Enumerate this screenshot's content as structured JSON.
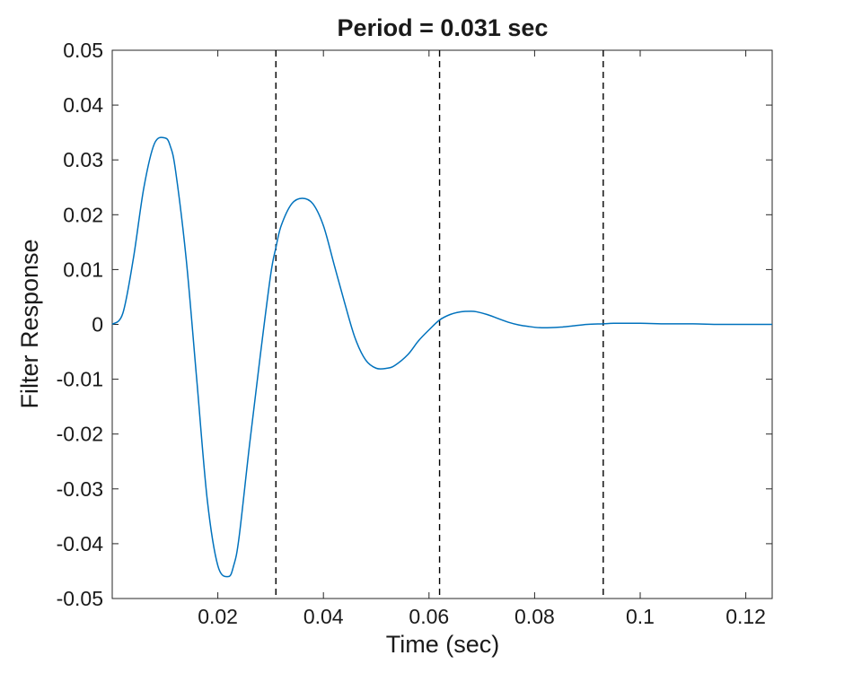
{
  "chart_data": {
    "type": "line",
    "title": "Period = 0.031 sec",
    "xlabel": "Time (sec)",
    "ylabel": "Filter Response",
    "xlim": [
      0,
      0.125
    ],
    "ylim": [
      -0.05,
      0.05
    ],
    "xticks": [
      0.02,
      0.04,
      0.06,
      0.08,
      0.1,
      0.12
    ],
    "xtick_labels": [
      "0.02",
      "0.04",
      "0.06",
      "0.08",
      "0.1",
      "0.12"
    ],
    "yticks": [
      -0.05,
      -0.04,
      -0.03,
      -0.02,
      -0.01,
      0,
      0.01,
      0.02,
      0.03,
      0.04,
      0.05
    ],
    "ytick_labels": [
      "-0.05",
      "-0.04",
      "-0.03",
      "-0.02",
      "-0.01",
      "0",
      "0.01",
      "0.02",
      "0.03",
      "0.04",
      "0.05"
    ],
    "grid": false,
    "vlines": [
      0.031,
      0.062,
      0.093
    ],
    "vline_style": "dashed",
    "vline_color": "#000000",
    "series": [
      {
        "color": "#0072BD",
        "x": [
          0.0,
          0.002,
          0.004,
          0.006,
          0.008,
          0.01,
          0.011,
          0.012,
          0.014,
          0.016,
          0.018,
          0.02,
          0.022,
          0.023,
          0.024,
          0.026,
          0.028,
          0.03,
          0.031,
          0.032,
          0.034,
          0.036,
          0.038,
          0.04,
          0.042,
          0.044,
          0.046,
          0.048,
          0.05,
          0.052,
          0.0535,
          0.056,
          0.058,
          0.06,
          0.062,
          0.064,
          0.066,
          0.068,
          0.069,
          0.071,
          0.073,
          0.075,
          0.077,
          0.079,
          0.081,
          0.083,
          0.085,
          0.087,
          0.09,
          0.093,
          0.095,
          0.1,
          0.105,
          0.11,
          0.115,
          0.12,
          0.125
        ],
        "y": [
          0.0,
          0.002,
          0.012,
          0.025,
          0.033,
          0.034,
          0.0325,
          0.028,
          0.012,
          -0.01,
          -0.032,
          -0.044,
          -0.046,
          -0.044,
          -0.039,
          -0.022,
          -0.006,
          0.009,
          0.014,
          0.018,
          0.022,
          0.023,
          0.022,
          0.018,
          0.011,
          0.004,
          -0.0025,
          -0.0065,
          -0.008,
          -0.008,
          -0.0075,
          -0.0055,
          -0.003,
          -0.001,
          0.0008,
          0.0018,
          0.0023,
          0.0024,
          0.0023,
          0.0018,
          0.0011,
          0.0004,
          -0.0001,
          -0.0004,
          -0.0006,
          -0.0006,
          -0.0005,
          -0.0003,
          0.0,
          0.0001,
          0.0002,
          0.0002,
          0.0001,
          0.0001,
          0.0,
          0.0,
          0.0
        ]
      }
    ]
  }
}
